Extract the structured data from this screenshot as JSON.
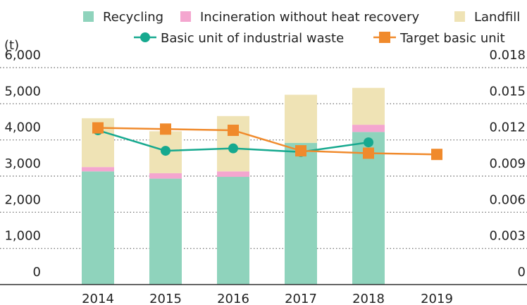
{
  "chart_data": {
    "type": "bar",
    "categories": [
      "2014",
      "2015",
      "2016",
      "2017",
      "2018",
      "2019"
    ],
    "y_unit_label": "(t)",
    "left_axis": {
      "ylim": [
        0,
        6000
      ],
      "ticks": [
        "0",
        "1,000",
        "2,000",
        "3,000",
        "4,000",
        "5,000",
        "6,000"
      ]
    },
    "right_axis": {
      "ylim": [
        0,
        0.018
      ],
      "ticks": [
        "0",
        "0.003",
        "0.006",
        "0.009",
        "0.012",
        "0.015",
        "0.018"
      ]
    },
    "grid": "dotted-horizontal",
    "legend_position": "top",
    "stacked_series": [
      {
        "name": "Recycling",
        "color": "#8fd3bc",
        "values": [
          3130,
          2930,
          2980,
          3920,
          4220,
          null
        ]
      },
      {
        "name": "Incineration without heat recovery",
        "color": "#f4a6cf",
        "values": [
          120,
          150,
          150,
          0,
          200,
          null
        ]
      },
      {
        "name": "Landfill",
        "color": "#efe3b5",
        "values": [
          1350,
          1160,
          1530,
          1330,
          1020,
          null
        ]
      }
    ],
    "line_series": [
      {
        "name": "Basic unit of industrial waste",
        "color": "#16a98f",
        "marker": "circle",
        "axis": "right",
        "values": [
          0.0128,
          0.0111,
          0.0113,
          0.011,
          0.0118,
          null
        ]
      },
      {
        "name": "Target basic unit",
        "color": "#f08a2c",
        "marker": "square",
        "axis": "right",
        "values": [
          0.013,
          0.0129,
          0.0128,
          0.0111,
          0.0109,
          0.0108
        ]
      }
    ]
  }
}
